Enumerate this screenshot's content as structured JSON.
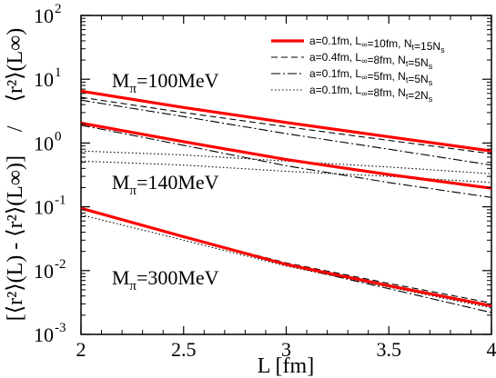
{
  "chart_data": {
    "type": "line",
    "title": "",
    "xlabel": "L [fm]",
    "ylabel_left": "[⟨r²⟩(L) - ⟨r²⟩(L∞)]",
    "ylabel_sep": "/",
    "ylabel_right": "⟨r²⟩(L∞)",
    "xlim": [
      2,
      4
    ],
    "ylim": [
      0.001,
      100
    ],
    "yscale": "log",
    "xticks": [
      2,
      2.5,
      3,
      3.5,
      4
    ],
    "xtick_labels": [
      "2",
      "2.5",
      "3",
      "3.5",
      "4"
    ],
    "yticks": [
      0.001,
      0.01,
      0.1,
      1,
      10,
      100
    ],
    "ytick_labels": [
      {
        "base": "10",
        "exp": "-3"
      },
      {
        "base": "10",
        "exp": "-2"
      },
      {
        "base": "10",
        "exp": "-1"
      },
      {
        "base": "10",
        "exp": "0"
      },
      {
        "base": "10",
        "exp": "1"
      },
      {
        "base": "10",
        "exp": "2"
      }
    ],
    "grid": false,
    "legend_position": "top-right",
    "legend": [
      {
        "text": "a=0.1fm, L∞=10fm, Nt=15Ns",
        "style": "solid-red",
        "color": "#ff0000"
      },
      {
        "text": "a=0.4fm, L∞=8fm, Nt=5Ns",
        "style": "dashed",
        "color": "#000000"
      },
      {
        "text": "a=0.1fm, L∞=5fm, Nt=5Ns",
        "style": "dashdot",
        "color": "#000000"
      },
      {
        "text": "a=0.1fm, L∞=8fm, Nt=2Ns",
        "style": "dotted",
        "color": "#000000"
      }
    ],
    "annotations": [
      {
        "text": "Mπ=100MeV",
        "x": 2.15,
        "y": 7.5
      },
      {
        "text": "Mπ=140MeV",
        "x": 2.15,
        "y": 0.19
      },
      {
        "text": "Mπ=300MeV",
        "x": 2.15,
        "y": 0.0061
      }
    ],
    "series": [
      {
        "group": "Mπ=100MeV",
        "style": "solid-red",
        "x": [
          2,
          2.5,
          3,
          3.5,
          4
        ],
        "y": [
          6.5,
          3.6,
          2.1,
          1.25,
          0.75
        ]
      },
      {
        "group": "Mπ=100MeV",
        "style": "dashed",
        "x": [
          2,
          2.5,
          3,
          3.5,
          4
        ],
        "y": [
          5.2,
          3.0,
          1.8,
          1.1,
          0.68
        ]
      },
      {
        "group": "Mπ=100MeV",
        "style": "dashdot",
        "x": [
          2,
          2.5,
          3,
          3.5,
          4
        ],
        "y": [
          4.7,
          2.6,
          1.4,
          0.8,
          0.45
        ]
      },
      {
        "group": "Mπ=100MeV",
        "style": "dotted",
        "x": [
          2,
          2.5,
          3,
          3.5,
          4
        ],
        "y": [
          0.75,
          0.65,
          0.52,
          0.42,
          0.33
        ]
      },
      {
        "group": "Mπ=140MeV",
        "style": "solid-red",
        "x": [
          2,
          2.5,
          3,
          3.5,
          4
        ],
        "y": [
          2.05,
          1.05,
          0.55,
          0.32,
          0.195
        ]
      },
      {
        "group": "Mπ=140MeV",
        "style": "dashed",
        "x": [
          2,
          2.5,
          3,
          3.5,
          4
        ],
        "y": [
          2.0,
          1.02,
          0.54,
          0.31,
          0.19
        ]
      },
      {
        "group": "Mπ=140MeV",
        "style": "dashdot",
        "x": [
          2,
          2.5,
          3,
          3.5,
          4
        ],
        "y": [
          1.9,
          0.92,
          0.44,
          0.24,
          0.14
        ]
      },
      {
        "group": "Mπ=140MeV",
        "style": "dotted",
        "x": [
          2,
          2.5,
          3,
          3.5,
          4
        ],
        "y": [
          0.52,
          0.45,
          0.36,
          0.3,
          0.24
        ]
      },
      {
        "group": "Mπ=300MeV",
        "style": "solid-red",
        "x": [
          2,
          2.5,
          3,
          3.5,
          4
        ],
        "y": [
          0.095,
          0.034,
          0.0125,
          0.0058,
          0.0028
        ]
      },
      {
        "group": "Mπ=300MeV",
        "style": "dashed",
        "x": [
          2,
          2.5,
          3,
          3.5,
          4
        ],
        "y": [
          0.092,
          0.034,
          0.0132,
          0.0063,
          0.0031
        ]
      },
      {
        "group": "Mpi=300MeV",
        "style": "dashdot",
        "x": [
          2,
          2.5,
          3,
          3.5,
          4
        ],
        "y": [
          0.092,
          0.033,
          0.0122,
          0.0052,
          0.0022
        ]
      },
      {
        "group": "Mπ=300MeV",
        "style": "dotted",
        "x": [
          2,
          2.5,
          3,
          3.5,
          4
        ],
        "y": [
          0.075,
          0.03,
          0.0118,
          0.0055,
          0.0026
        ]
      }
    ]
  }
}
